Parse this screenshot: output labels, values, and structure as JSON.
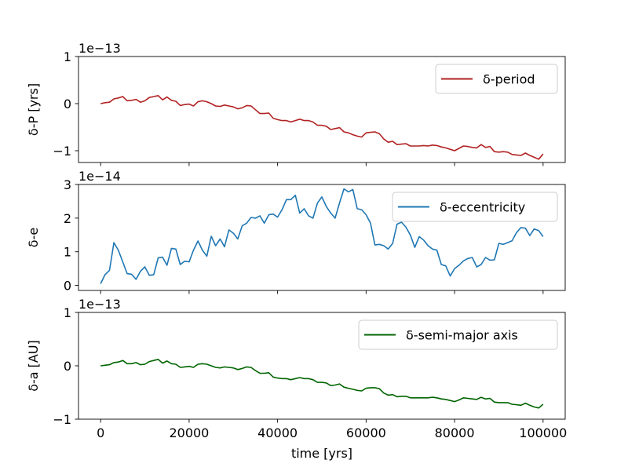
{
  "chart_data": [
    {
      "type": "line",
      "ylabel": "δ-P [yrs]",
      "offset_text": "1e−13",
      "ylim": [
        -1.25,
        1.0
      ],
      "yticks": [
        1,
        0,
        -1
      ],
      "ytick_labels": [
        "1",
        "0",
        "−1"
      ],
      "xlim": [
        -5000,
        105000
      ],
      "legend": "top-right",
      "series": [
        {
          "name": "δ-period",
          "color": "#b22222",
          "x": [
            0,
            1000,
            2000,
            3000,
            4000,
            5000,
            6000,
            7000,
            8000,
            9000,
            10000,
            11000,
            12000,
            13000,
            14000,
            15000,
            16000,
            17000,
            18000,
            19000,
            20000,
            21000,
            22000,
            23000,
            24000,
            25000,
            26000,
            27000,
            28000,
            29000,
            30000,
            31000,
            32000,
            33000,
            34000,
            35000,
            36000,
            37000,
            38000,
            39000,
            40000,
            41000,
            42000,
            43000,
            44000,
            45000,
            46000,
            47000,
            48000,
            49000,
            50000,
            51000,
            52000,
            53000,
            54000,
            55000,
            56000,
            57000,
            58000,
            59000,
            60000,
            61000,
            62000,
            63000,
            64000,
            65000,
            66000,
            67000,
            68000,
            69000,
            70000,
            71000,
            72000,
            73000,
            74000,
            75000,
            76000,
            77000,
            78000,
            79000,
            80000,
            81000,
            82000,
            83000,
            84000,
            85000,
            86000,
            87000,
            88000,
            89000,
            90000,
            91000,
            92000,
            93000,
            94000,
            95000,
            96000,
            97000,
            98000,
            99000,
            100000
          ],
          "values": [
            0.0,
            0.02,
            0.03,
            0.1,
            0.12,
            0.15,
            0.06,
            0.07,
            0.09,
            0.03,
            0.06,
            0.13,
            0.15,
            0.17,
            0.08,
            0.14,
            0.07,
            0.05,
            -0.04,
            -0.02,
            -0.01,
            -0.05,
            0.04,
            0.06,
            0.04,
            0.0,
            -0.05,
            -0.06,
            -0.03,
            -0.05,
            -0.07,
            -0.11,
            -0.09,
            -0.04,
            -0.05,
            -0.13,
            -0.21,
            -0.21,
            -0.2,
            -0.31,
            -0.34,
            -0.36,
            -0.36,
            -0.39,
            -0.36,
            -0.33,
            -0.36,
            -0.36,
            -0.39,
            -0.46,
            -0.46,
            -0.48,
            -0.55,
            -0.53,
            -0.51,
            -0.6,
            -0.62,
            -0.66,
            -0.69,
            -0.71,
            -0.62,
            -0.61,
            -0.6,
            -0.64,
            -0.75,
            -0.82,
            -0.8,
            -0.87,
            -0.86,
            -0.85,
            -0.9,
            -0.9,
            -0.9,
            -0.89,
            -0.9,
            -0.88,
            -0.89,
            -0.92,
            -0.94,
            -0.97,
            -1.0,
            -0.95,
            -0.9,
            -0.91,
            -0.93,
            -0.94,
            -0.87,
            -0.93,
            -0.91,
            -1.02,
            -1.03,
            -1.02,
            -1.03,
            -1.08,
            -1.09,
            -1.1,
            -1.05,
            -1.1,
            -1.14,
            -1.18,
            -1.07
          ]
        }
      ]
    },
    {
      "type": "line",
      "ylabel": "δ-e",
      "offset_text": "1e−14",
      "ylim": [
        -0.15,
        3.0
      ],
      "yticks": [
        3,
        2,
        1,
        0
      ],
      "ytick_labels": [
        "3",
        "2",
        "1",
        "0"
      ],
      "xlim": [
        -5000,
        105000
      ],
      "legend": "top-right",
      "series": [
        {
          "name": "δ-eccentricity",
          "color": "#1f77b4",
          "x": [
            0,
            1000,
            2000,
            3000,
            4000,
            5000,
            6000,
            7000,
            8000,
            9000,
            10000,
            11000,
            12000,
            13000,
            14000,
            15000,
            16000,
            17000,
            18000,
            19000,
            20000,
            21000,
            22000,
            23000,
            24000,
            25000,
            26000,
            27000,
            28000,
            29000,
            30000,
            31000,
            32000,
            33000,
            34000,
            35000,
            36000,
            37000,
            38000,
            39000,
            40000,
            41000,
            42000,
            43000,
            44000,
            45000,
            46000,
            47000,
            48000,
            49000,
            50000,
            51000,
            52000,
            53000,
            54000,
            55000,
            56000,
            57000,
            58000,
            59000,
            60000,
            61000,
            62000,
            63000,
            64000,
            65000,
            66000,
            67000,
            68000,
            69000,
            70000,
            71000,
            72000,
            73000,
            74000,
            75000,
            76000,
            77000,
            78000,
            79000,
            80000,
            81000,
            82000,
            83000,
            84000,
            85000,
            86000,
            87000,
            88000,
            89000,
            90000,
            91000,
            92000,
            93000,
            94000,
            95000,
            96000,
            97000,
            98000,
            99000,
            100000
          ],
          "values": [
            0.05,
            0.32,
            0.45,
            1.27,
            1.05,
            0.7,
            0.35,
            0.33,
            0.18,
            0.42,
            0.55,
            0.3,
            0.32,
            0.82,
            0.84,
            0.6,
            1.1,
            1.08,
            0.62,
            0.72,
            0.7,
            1.05,
            1.32,
            1.05,
            0.87,
            1.46,
            1.18,
            1.38,
            1.15,
            1.65,
            1.55,
            1.38,
            1.77,
            1.85,
            2.02,
            2.0,
            2.07,
            1.85,
            2.1,
            2.12,
            2.03,
            2.25,
            2.55,
            2.55,
            2.68,
            2.15,
            2.28,
            2.07,
            2.0,
            2.45,
            2.63,
            2.35,
            2.15,
            2.0,
            2.45,
            2.87,
            2.78,
            2.85,
            2.28,
            2.25,
            2.1,
            1.85,
            1.2,
            1.22,
            1.18,
            1.08,
            1.25,
            1.82,
            1.88,
            1.73,
            1.5,
            1.13,
            1.45,
            1.35,
            1.18,
            1.08,
            1.05,
            0.62,
            0.58,
            0.28,
            0.5,
            0.6,
            0.73,
            0.8,
            0.83,
            0.55,
            0.62,
            0.83,
            0.75,
            0.76,
            1.25,
            1.22,
            1.27,
            1.33,
            1.57,
            1.72,
            1.7,
            1.48,
            1.68,
            1.63,
            1.45
          ]
        }
      ]
    },
    {
      "type": "line",
      "ylabel": "δ-a [AU]",
      "offset_text": "1e−13",
      "xlabel": "time [yrs]",
      "ylim": [
        -1.0,
        1.0
      ],
      "yticks": [
        1,
        0,
        -1
      ],
      "ytick_labels": [
        "1",
        "0",
        "−1"
      ],
      "xlim": [
        -5000,
        105000
      ],
      "xticks": [
        0,
        20000,
        40000,
        60000,
        80000,
        100000
      ],
      "xtick_labels": [
        "0",
        "20000",
        "40000",
        "60000",
        "80000",
        "100000"
      ],
      "legend": "top-right",
      "series": [
        {
          "name": "δ-semi-major axis",
          "color": "#006400",
          "x": [
            0,
            1000,
            2000,
            3000,
            4000,
            5000,
            6000,
            7000,
            8000,
            9000,
            10000,
            11000,
            12000,
            13000,
            14000,
            15000,
            16000,
            17000,
            18000,
            19000,
            20000,
            21000,
            22000,
            23000,
            24000,
            25000,
            26000,
            27000,
            28000,
            29000,
            30000,
            31000,
            32000,
            33000,
            34000,
            35000,
            36000,
            37000,
            38000,
            39000,
            40000,
            41000,
            42000,
            43000,
            44000,
            45000,
            46000,
            47000,
            48000,
            49000,
            50000,
            51000,
            52000,
            53000,
            54000,
            55000,
            56000,
            57000,
            58000,
            59000,
            60000,
            61000,
            62000,
            63000,
            64000,
            65000,
            66000,
            67000,
            68000,
            69000,
            70000,
            71000,
            72000,
            73000,
            74000,
            75000,
            76000,
            77000,
            78000,
            79000,
            80000,
            81000,
            82000,
            83000,
            84000,
            85000,
            86000,
            87000,
            88000,
            89000,
            90000,
            91000,
            92000,
            93000,
            94000,
            95000,
            96000,
            97000,
            98000,
            99000,
            100000
          ],
          "values": [
            0.0,
            0.01,
            0.02,
            0.06,
            0.07,
            0.1,
            0.04,
            0.04,
            0.06,
            0.02,
            0.03,
            0.08,
            0.1,
            0.12,
            0.05,
            0.09,
            0.04,
            0.03,
            -0.03,
            -0.02,
            -0.01,
            -0.03,
            0.03,
            0.04,
            0.03,
            0.0,
            -0.03,
            -0.04,
            -0.02,
            -0.03,
            -0.04,
            -0.07,
            -0.05,
            -0.02,
            -0.03,
            -0.09,
            -0.14,
            -0.14,
            -0.13,
            -0.21,
            -0.23,
            -0.24,
            -0.24,
            -0.26,
            -0.24,
            -0.22,
            -0.24,
            -0.24,
            -0.26,
            -0.31,
            -0.31,
            -0.32,
            -0.37,
            -0.36,
            -0.34,
            -0.4,
            -0.42,
            -0.44,
            -0.46,
            -0.47,
            -0.42,
            -0.41,
            -0.41,
            -0.43,
            -0.51,
            -0.55,
            -0.54,
            -0.58,
            -0.57,
            -0.57,
            -0.6,
            -0.6,
            -0.6,
            -0.6,
            -0.6,
            -0.59,
            -0.6,
            -0.62,
            -0.63,
            -0.65,
            -0.67,
            -0.64,
            -0.6,
            -0.61,
            -0.62,
            -0.63,
            -0.59,
            -0.62,
            -0.61,
            -0.68,
            -0.69,
            -0.69,
            -0.69,
            -0.72,
            -0.73,
            -0.74,
            -0.7,
            -0.74,
            -0.77,
            -0.79,
            -0.72
          ]
        }
      ]
    }
  ]
}
